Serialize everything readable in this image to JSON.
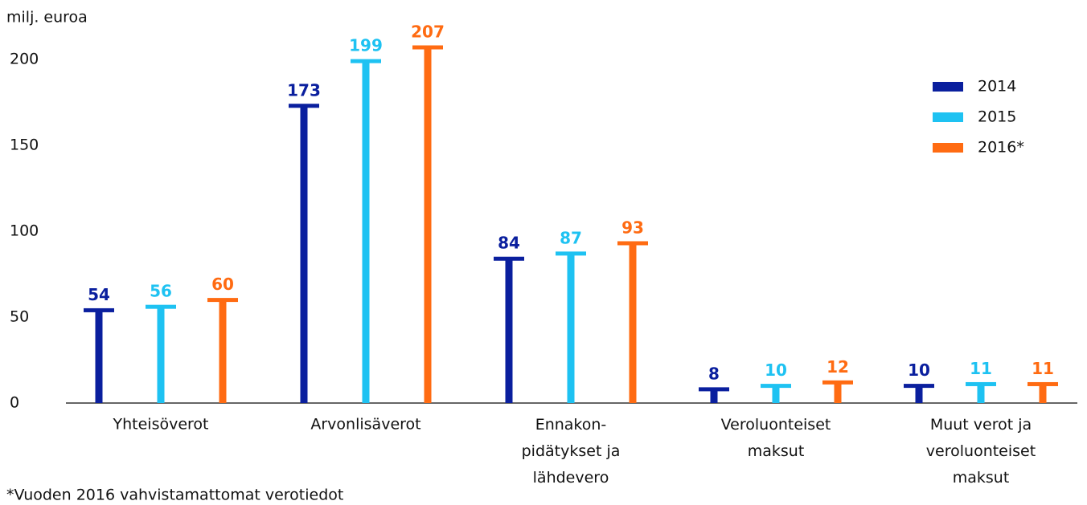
{
  "chart_data": {
    "type": "bar",
    "y_label": "milj. euroa",
    "footnote": "*Vuoden 2016 vahvistamattomat verotiedot",
    "categories": [
      "Yhteisöverot",
      "Arvonlisäverot",
      "Ennakon-\npidätykset ja\nlähdevero",
      "Veroluonteiset\nmaksut",
      "Muut verot ja\nveroluonteiset\nmaksut"
    ],
    "series": [
      {
        "name": "2014",
        "color": "#0a1f9e",
        "values": [
          54,
          173,
          84,
          8,
          10
        ]
      },
      {
        "name": "2015",
        "color": "#1ec2f2",
        "values": [
          56,
          199,
          87,
          10,
          11
        ]
      },
      {
        "name": "2016*",
        "color": "#ff6b12",
        "values": [
          60,
          207,
          93,
          12,
          11
        ]
      }
    ],
    "ylim": [
      0,
      200
    ],
    "yticks": [
      0,
      50,
      100,
      150,
      200
    ],
    "legend": "top-right"
  }
}
